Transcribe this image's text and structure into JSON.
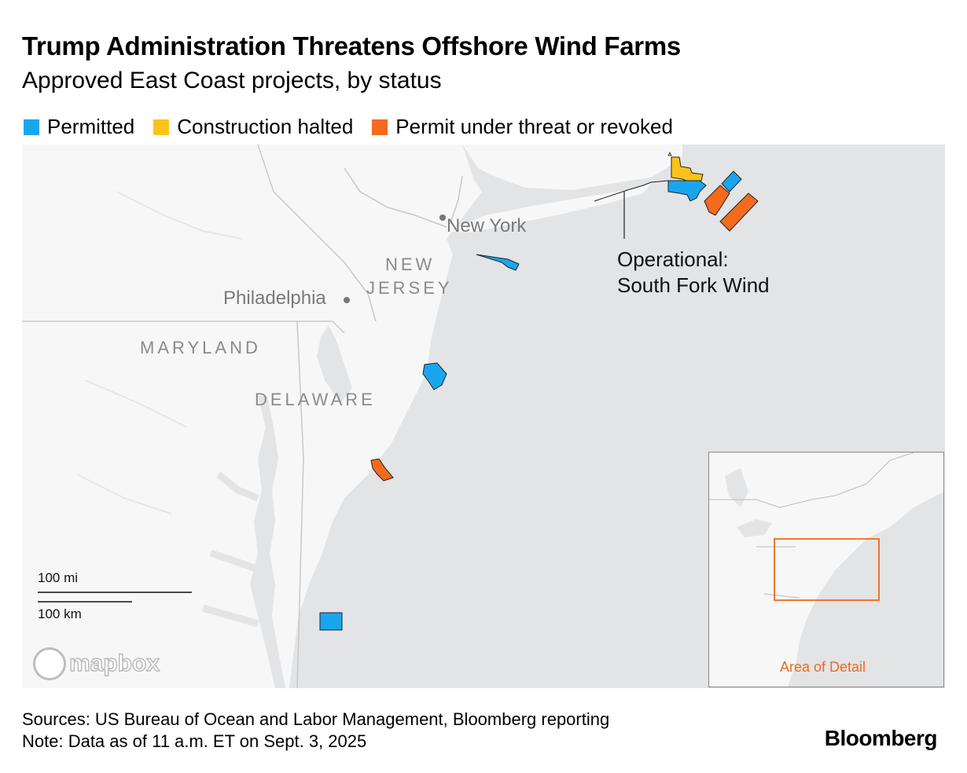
{
  "title": "Trump Administration Threatens Offshore Wind Farms",
  "subtitle": "Approved East Coast projects, by status",
  "legend": [
    {
      "label": "Permitted",
      "color": "#1aa6ef"
    },
    {
      "label": "Construction halted",
      "color": "#fbc31a"
    },
    {
      "label": "Permit under threat or revoked",
      "color": "#f46a1e"
    }
  ],
  "map": {
    "cities": {
      "new_york": "New York",
      "philadelphia": "Philadelphia"
    },
    "states": {
      "new_jersey_1": "NEW",
      "new_jersey_2": "JERSEY",
      "maryland": "MARYLAND",
      "delaware": "DELAWARE"
    },
    "annotation_line1": "Operational:",
    "annotation_line2": "South Fork Wind",
    "scale_mi": "100 mi",
    "scale_km": "100 km",
    "attribution": "mapbox",
    "colors": {
      "water": "#e3e4e6",
      "land": "#f7f7f7",
      "border": "#c8c8c8"
    }
  },
  "inset": {
    "label": "Area of Detail",
    "highlight_color": "#f06a1e"
  },
  "footer": {
    "sources": "Sources: US Bureau of Ocean and Labor Management, Bloomberg reporting",
    "note": "Note: Data as of 11 a.m. ET on Sept. 3, 2025",
    "brand": "Bloomberg"
  }
}
